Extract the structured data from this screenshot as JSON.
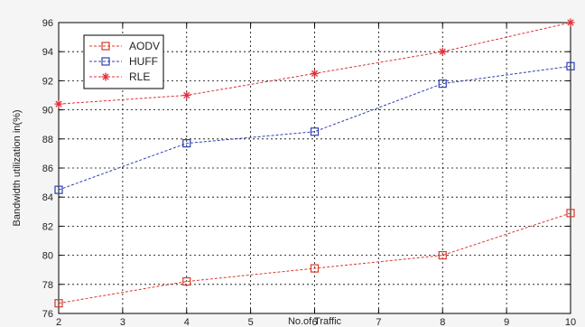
{
  "chart_data": {
    "type": "line",
    "title": "",
    "xlabel": "No.of Traffic",
    "ylabel": "Bandwidth utilization in(%)",
    "xlim": [
      2,
      10
    ],
    "ylim": [
      76,
      96
    ],
    "xticks": [
      2,
      3,
      4,
      5,
      6,
      7,
      8,
      9,
      10
    ],
    "yticks": [
      76,
      78,
      80,
      82,
      84,
      86,
      88,
      90,
      92,
      94,
      96
    ],
    "grid": true,
    "legend_position": "top-left",
    "x": [
      2,
      4,
      6,
      8,
      10
    ],
    "series": [
      {
        "name": "AODV",
        "color": "#d93a2b",
        "marker": "square",
        "values": [
          76.7,
          78.2,
          79.1,
          80.0,
          82.9
        ]
      },
      {
        "name": "HUFF",
        "color": "#2f3fb0",
        "marker": "square",
        "values": [
          84.5,
          87.7,
          88.5,
          91.8,
          93.0
        ]
      },
      {
        "name": "RLE",
        "color": "#e0303a",
        "marker": "star",
        "values": [
          90.4,
          91.0,
          92.5,
          94.0,
          96.0
        ]
      }
    ]
  }
}
